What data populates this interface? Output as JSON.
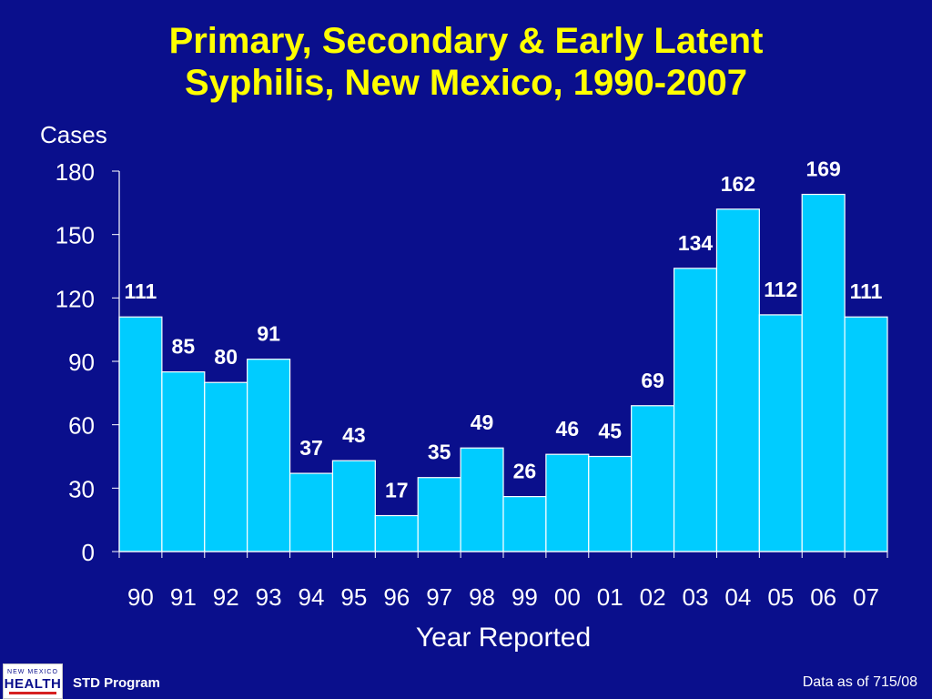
{
  "title_line1": "Primary, Secondary & Early Latent",
  "title_line2": "Syphilis, New Mexico, 1990-2007",
  "footer": {
    "logo_top": "NEW MEXICO",
    "logo_main": "HEALTH",
    "program": "STD Program",
    "data_as_of": "Data as of 715/08"
  },
  "colors": {
    "background": "#0a0f8c",
    "title": "#ffff00",
    "bar_fill": "#00ccff",
    "bar_stroke": "#ffffff",
    "text": "#ffffff"
  },
  "chart_data": {
    "type": "bar",
    "categories": [
      "90",
      "91",
      "92",
      "93",
      "94",
      "95",
      "96",
      "97",
      "98",
      "99",
      "00",
      "01",
      "02",
      "03",
      "04",
      "05",
      "06",
      "07"
    ],
    "values": [
      111,
      85,
      80,
      91,
      37,
      43,
      17,
      35,
      49,
      26,
      46,
      45,
      69,
      134,
      162,
      112,
      169,
      111
    ],
    "data_labels": [
      "111",
      "85",
      "80",
      "91",
      "37",
      "43",
      "17",
      "35",
      "49",
      "26",
      "46",
      "45",
      "69",
      "134",
      "162",
      "112",
      "169",
      "111"
    ],
    "ylabel": "Cases",
    "xlabel": "Year Reported",
    "ylim": [
      0,
      180
    ],
    "yticks": [
      0,
      30,
      60,
      90,
      120,
      150,
      180
    ],
    "grid": false,
    "legend": false
  }
}
